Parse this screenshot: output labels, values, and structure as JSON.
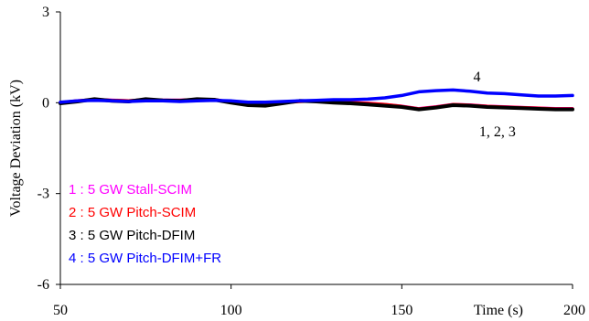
{
  "chart_data": {
    "type": "line",
    "xlabel": "Time (s)",
    "ylabel": "Voltage Deviation (kV)",
    "xlim": [
      50,
      200
    ],
    "ylim": [
      -6,
      3
    ],
    "x_ticks": [
      50,
      100,
      150,
      200
    ],
    "y_ticks": [
      3,
      0,
      -3,
      -6
    ],
    "x_tick_labels": [
      "50",
      "100",
      "150",
      "200"
    ],
    "y_tick_labels": [
      "3",
      "0",
      "-3",
      "-6"
    ],
    "grid": false,
    "legend": {
      "placement": "bottom-left",
      "entries": [
        {
          "text": "1 : 5 GW  Stall-SCIM",
          "color": "#ff00ff"
        },
        {
          "text": "2 : 5 GW Pitch-SCIM",
          "color": "#ff0000"
        },
        {
          "text": "3 : 5 GW Pitch-DFIM",
          "color": "#000000"
        },
        {
          "text": "4 : 5 GW Pitch-DFIM+FR",
          "color": "#0000ff"
        }
      ]
    },
    "annotations": [
      {
        "text": "4",
        "x": 172,
        "y": 0.7
      },
      {
        "text": "1, 2, 3",
        "x": 178,
        "y": -1.1
      }
    ],
    "series": [
      {
        "color": "#ff00ff",
        "width": 2.5,
        "x": [
          50,
          55,
          60,
          65,
          70,
          75,
          80,
          85,
          90,
          95,
          100,
          105,
          110,
          115,
          120,
          125,
          130,
          135,
          140,
          145,
          150,
          155,
          160,
          165,
          170,
          175,
          180,
          185,
          190,
          195,
          200
        ],
        "y": [
          0.02,
          0.08,
          0.12,
          0.1,
          0.08,
          0.12,
          0.1,
          0.1,
          0.12,
          0.12,
          0.04,
          -0.02,
          -0.04,
          0.02,
          0.06,
          0.08,
          0.04,
          0.02,
          0.0,
          -0.04,
          -0.1,
          -0.18,
          -0.12,
          -0.04,
          -0.06,
          -0.1,
          -0.12,
          -0.14,
          -0.16,
          -0.18,
          -0.18
        ]
      },
      {
        "color": "#ff0000",
        "width": 3.5,
        "x": [
          50,
          55,
          60,
          65,
          70,
          75,
          80,
          85,
          90,
          95,
          100,
          105,
          110,
          115,
          120,
          125,
          130,
          135,
          140,
          145,
          150,
          155,
          160,
          165,
          170,
          175,
          180,
          185,
          190,
          195,
          200
        ],
        "y": [
          0.0,
          0.06,
          0.1,
          0.08,
          0.06,
          0.1,
          0.08,
          0.08,
          0.1,
          0.1,
          0.02,
          -0.04,
          -0.06,
          0.0,
          0.04,
          0.06,
          0.02,
          0.0,
          -0.02,
          -0.06,
          -0.12,
          -0.2,
          -0.14,
          -0.06,
          -0.08,
          -0.12,
          -0.14,
          -0.16,
          -0.18,
          -0.2,
          -0.2
        ]
      },
      {
        "color": "#000000",
        "width": 4,
        "x": [
          50,
          55,
          60,
          65,
          70,
          75,
          80,
          85,
          90,
          95,
          100,
          105,
          110,
          115,
          120,
          125,
          130,
          135,
          140,
          145,
          150,
          155,
          160,
          165,
          170,
          175,
          180,
          185,
          190,
          195,
          200
        ],
        "y": [
          -0.02,
          0.04,
          0.12,
          0.06,
          0.04,
          0.12,
          0.08,
          0.06,
          0.12,
          0.1,
          0.0,
          -0.08,
          -0.1,
          -0.02,
          0.06,
          0.04,
          0.0,
          -0.02,
          -0.06,
          -0.1,
          -0.14,
          -0.22,
          -0.16,
          -0.08,
          -0.1,
          -0.14,
          -0.16,
          -0.18,
          -0.2,
          -0.22,
          -0.22
        ]
      },
      {
        "color": "#0000ff",
        "width": 3.5,
        "x": [
          50,
          55,
          60,
          65,
          70,
          75,
          80,
          85,
          90,
          95,
          100,
          105,
          110,
          115,
          120,
          125,
          130,
          135,
          140,
          145,
          150,
          155,
          160,
          165,
          170,
          175,
          180,
          185,
          190,
          195,
          200
        ],
        "y": [
          0.02,
          0.06,
          0.08,
          0.06,
          0.04,
          0.06,
          0.06,
          0.04,
          0.06,
          0.08,
          0.06,
          0.02,
          0.02,
          0.04,
          0.06,
          0.08,
          0.1,
          0.1,
          0.12,
          0.16,
          0.24,
          0.36,
          0.4,
          0.42,
          0.38,
          0.32,
          0.3,
          0.26,
          0.22,
          0.22,
          0.24
        ]
      }
    ]
  }
}
